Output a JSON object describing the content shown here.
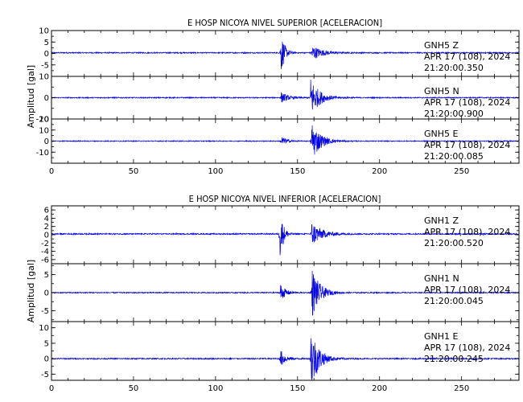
{
  "colors": {
    "trace": "#0000e6",
    "axis": "#000000",
    "background": "#ffffff"
  },
  "chart_data": [
    {
      "type": "line",
      "title": "E HOSP NICOYA NIVEL SUPERIOR [ACELERACION]",
      "ylabel": "Amplitud [gal]",
      "xlim": [
        0,
        285
      ],
      "xticks": [
        0,
        50,
        100,
        150,
        200,
        250
      ],
      "series": [
        {
          "name": "GNH5 Z",
          "station": "GNH5",
          "component": "Z",
          "date": "APR 17 (108), 2024",
          "time": "21:20:00.350",
          "ylim": [
            -10,
            10
          ],
          "yticks": [
            10,
            5,
            0,
            -5
          ],
          "baseline": 0.3,
          "noise": 0.25,
          "bursts": [
            {
              "t": 139.8,
              "amp": 9.5,
              "decay": 2.2
            },
            {
              "t": 158.5,
              "amp": 3.5,
              "decay": 6
            }
          ]
        },
        {
          "name": "GNH5 N",
          "station": "GNH5",
          "component": "N",
          "date": "APR 17 (108), 2024",
          "time": "21:20:00.900",
          "ylim": [
            -10,
            10
          ],
          "yticks": [
            10,
            0,
            -10
          ],
          "baseline": 0,
          "noise": 0.25,
          "bursts": [
            {
              "t": 140,
              "amp": 2.5,
              "decay": 4
            },
            {
              "t": 158,
              "amp": 9.5,
              "decay": 5
            }
          ]
        },
        {
          "name": "GNH5 E",
          "station": "GNH5",
          "component": "E",
          "date": "APR 17 (108), 2024",
          "time": "21:20:00.085",
          "ylim": [
            -20,
            20
          ],
          "yticks": [
            20,
            10,
            0,
            -10
          ],
          "baseline": 0,
          "noise": 0.4,
          "bursts": [
            {
              "t": 140,
              "amp": 5,
              "decay": 3
            },
            {
              "t": 158.5,
              "amp": 19,
              "decay": 5
            }
          ]
        }
      ]
    },
    {
      "type": "line",
      "title": "E HOSP NICOYA NIVEL INFERIOR [ACELERACION]",
      "ylabel": "Amplitud [gal]",
      "xlim": [
        0,
        285
      ],
      "xticks": [
        0,
        50,
        100,
        150,
        200,
        250
      ],
      "series": [
        {
          "name": "GNH1 Z",
          "station": "GNH1",
          "component": "Z",
          "date": "APR 17 (108), 2024",
          "time": "21:20:00.520",
          "ylim": [
            -7,
            7
          ],
          "yticks": [
            6,
            4,
            2,
            0,
            -2,
            -4,
            -6
          ],
          "baseline": 0.2,
          "noise": 0.15,
          "bursts": [
            {
              "t": 139.2,
              "amp": 6.5,
              "decay": 2
            },
            {
              "t": 158.5,
              "amp": 3,
              "decay": 6
            }
          ]
        },
        {
          "name": "GNH1 N",
          "station": "GNH1",
          "component": "N",
          "date": "APR 17 (108), 2024",
          "time": "21:20:00.045",
          "ylim": [
            -8,
            8
          ],
          "yticks": [
            5,
            0,
            -5
          ],
          "baseline": 0,
          "noise": 0.15,
          "bursts": [
            {
              "t": 139.5,
              "amp": 2.5,
              "decay": 3
            },
            {
              "t": 158.5,
              "amp": 7.5,
              "decay": 4.5
            }
          ]
        },
        {
          "name": "GNH1 E",
          "station": "GNH1",
          "component": "E",
          "date": "APR 17 (108), 2024",
          "time": "21:20:00.245",
          "ylim": [
            -7,
            12
          ],
          "yticks": [
            10,
            5,
            0,
            -5
          ],
          "baseline": 0,
          "noise": 0.2,
          "bursts": [
            {
              "t": 139.5,
              "amp": 3,
              "decay": 3
            },
            {
              "t": 158,
              "amp": 11,
              "decay": 4.5
            }
          ]
        }
      ]
    }
  ]
}
